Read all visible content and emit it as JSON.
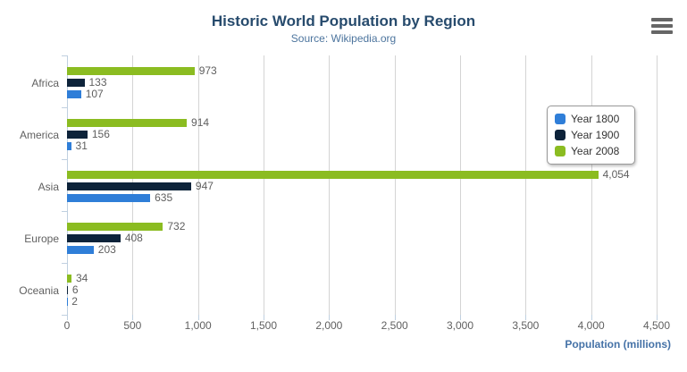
{
  "header": {
    "title": "Historic World Population by Region",
    "subtitle": "Source: Wikipedia.org"
  },
  "chart_data": {
    "type": "bar",
    "orientation": "horizontal",
    "title": "Historic World Population by Region",
    "subtitle": "Source: Wikipedia.org",
    "categories": [
      "Africa",
      "America",
      "Asia",
      "Europe",
      "Oceania"
    ],
    "series": [
      {
        "name": "Year 1800",
        "color": "#2f7ed8",
        "values": [
          107,
          31,
          635,
          203,
          2
        ],
        "labels": [
          "107",
          "31",
          "635",
          "203",
          "2"
        ]
      },
      {
        "name": "Year 1900",
        "color": "#0d233a",
        "values": [
          133,
          156,
          947,
          408,
          6
        ],
        "labels": [
          "133",
          "156",
          "947",
          "408",
          "6"
        ]
      },
      {
        "name": "Year 2008",
        "color": "#8bbc21",
        "values": [
          973,
          914,
          4054,
          732,
          34
        ],
        "labels": [
          "973",
          "914",
          "4,054",
          "732",
          "34"
        ]
      }
    ],
    "bar_order_top_to_bottom": [
      "Year 2008",
      "Year 1900",
      "Year 1800"
    ],
    "xlabel": "Population (millions)",
    "ylabel": "",
    "xlim": [
      0,
      4500
    ],
    "x_ticks": [
      0,
      500,
      1000,
      1500,
      2000,
      2500,
      3000,
      3500,
      4000,
      4500
    ],
    "x_tick_labels": [
      "0",
      "500",
      "1,000",
      "1,500",
      "2,000",
      "2,500",
      "3,000",
      "3,500",
      "4,000",
      "4,500"
    ],
    "grid": "vertical-only",
    "legend_position": "right"
  },
  "colors": {
    "title": "#274b6d",
    "subtitle": "#4d759e",
    "axis_title": "#4572a7",
    "tick_label": "#606060",
    "gridline": "#d4d4d4",
    "axis_line": "#c0d0e0",
    "series_1800": "#2f7ed8",
    "series_1900": "#0d233a",
    "series_2008": "#8bbc21"
  },
  "icons": {
    "menu": "hamburger-icon"
  }
}
